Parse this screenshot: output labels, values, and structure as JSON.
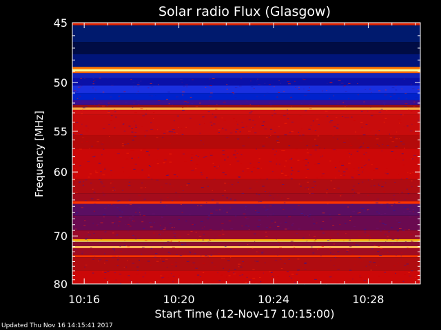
{
  "chart_data": {
    "type": "heatmap",
    "title": "Solar radio Flux (Glasgow)",
    "xlabel": "Start Time (12-Nov-17 10:15:00)",
    "ylabel": "Frequency [MHz]",
    "x_unit": "minutes after 10:15",
    "x_range": [
      0.5,
      15.2
    ],
    "x_ticks": [
      {
        "value": 1,
        "label": "10:16"
      },
      {
        "value": 5,
        "label": "10:20"
      },
      {
        "value": 9,
        "label": "10:24"
      },
      {
        "value": 13,
        "label": "10:28"
      }
    ],
    "y_range": [
      45,
      80
    ],
    "y_scale": "reciprocal",
    "y_ticks": [
      {
        "value": 45,
        "label": "45"
      },
      {
        "value": 50,
        "label": "50"
      },
      {
        "value": 55,
        "label": "55"
      },
      {
        "value": 60,
        "label": "60"
      },
      {
        "value": 70,
        "label": "70"
      },
      {
        "value": 80,
        "label": "80"
      }
    ],
    "frequency_bands": [
      {
        "from": 44.8,
        "to": 45.2,
        "color": "#dd2200"
      },
      {
        "from": 45.2,
        "to": 46.5,
        "color": "#001a6e"
      },
      {
        "from": 46.5,
        "to": 47.5,
        "color": "#000c44"
      },
      {
        "from": 47.5,
        "to": 48.6,
        "color": "#00157a"
      },
      {
        "from": 48.6,
        "to": 48.8,
        "color": "#ff7700"
      },
      {
        "from": 48.8,
        "to": 49.0,
        "color": "#ffff99"
      },
      {
        "from": 49.0,
        "to": 49.15,
        "color": "#ff6600"
      },
      {
        "from": 49.15,
        "to": 49.6,
        "color": "#1222bb"
      },
      {
        "from": 49.6,
        "to": 50.3,
        "color": "#0a10a8"
      },
      {
        "from": 50.3,
        "to": 51.0,
        "color": "#1a30e0"
      },
      {
        "from": 51.0,
        "to": 51.7,
        "color": "#0022cc"
      },
      {
        "from": 51.7,
        "to": 52.2,
        "color": "#3a1090"
      },
      {
        "from": 52.2,
        "to": 52.45,
        "color": "#9a1010"
      },
      {
        "from": 52.45,
        "to": 52.7,
        "color": "#ffaa44"
      },
      {
        "from": 52.7,
        "to": 53.2,
        "color": "#d01010"
      },
      {
        "from": 53.2,
        "to": 55.5,
        "color": "#c80c0c"
      },
      {
        "from": 55.5,
        "to": 57.0,
        "color": "#b40a0a"
      },
      {
        "from": 57.0,
        "to": 61.0,
        "color": "#cc0808"
      },
      {
        "from": 61.0,
        "to": 63.0,
        "color": "#b00c12"
      },
      {
        "from": 63.0,
        "to": 64.2,
        "color": "#a40c1c"
      },
      {
        "from": 64.2,
        "to": 64.6,
        "color": "#ff3300"
      },
      {
        "from": 64.6,
        "to": 66.5,
        "color": "#5a0e62"
      },
      {
        "from": 66.5,
        "to": 69.0,
        "color": "#6a0a50"
      },
      {
        "from": 69.0,
        "to": 70.6,
        "color": "#9a0a2a"
      },
      {
        "from": 70.6,
        "to": 70.9,
        "color": "#ffaa00"
      },
      {
        "from": 70.9,
        "to": 71.1,
        "color": "#ffee77"
      },
      {
        "from": 71.1,
        "to": 71.9,
        "color": "#8a1030"
      },
      {
        "from": 71.9,
        "to": 72.3,
        "color": "#ffbb55"
      },
      {
        "from": 72.3,
        "to": 73.7,
        "color": "#a00c22"
      },
      {
        "from": 73.7,
        "to": 74.1,
        "color": "#ff3300"
      },
      {
        "from": 74.1,
        "to": 77.0,
        "color": "#b00c10"
      },
      {
        "from": 77.0,
        "to": 80.0,
        "color": "#cc0808"
      }
    ],
    "noise_colors": [
      "#1a1aaa",
      "#3a1b9a",
      "#6b0f6f",
      "#d00000",
      "#ff2a00"
    ]
  },
  "footer": {
    "text": "Updated Thu Nov 16 14:15:41 2017"
  }
}
